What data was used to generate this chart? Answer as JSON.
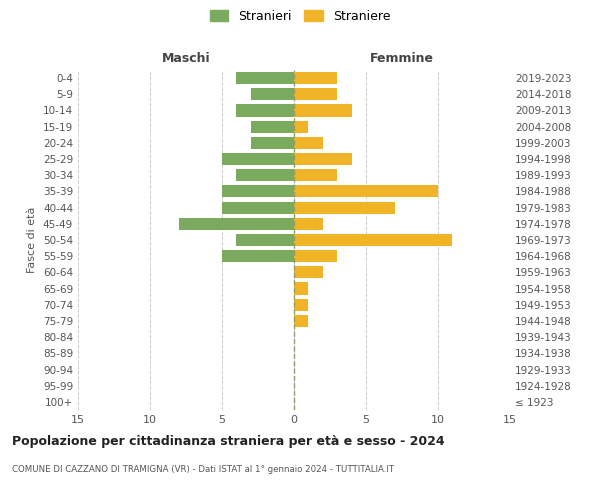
{
  "age_groups": [
    "100+",
    "95-99",
    "90-94",
    "85-89",
    "80-84",
    "75-79",
    "70-74",
    "65-69",
    "60-64",
    "55-59",
    "50-54",
    "45-49",
    "40-44",
    "35-39",
    "30-34",
    "25-29",
    "20-24",
    "15-19",
    "10-14",
    "5-9",
    "0-4"
  ],
  "birth_years": [
    "≤ 1923",
    "1924-1928",
    "1929-1933",
    "1934-1938",
    "1939-1943",
    "1944-1948",
    "1949-1953",
    "1954-1958",
    "1959-1963",
    "1964-1968",
    "1969-1973",
    "1974-1978",
    "1979-1983",
    "1984-1988",
    "1989-1993",
    "1994-1998",
    "1999-2003",
    "2004-2008",
    "2009-2013",
    "2014-2018",
    "2019-2023"
  ],
  "males": [
    0,
    0,
    0,
    0,
    0,
    0,
    0,
    0,
    0,
    5,
    4,
    8,
    5,
    5,
    4,
    5,
    3,
    3,
    4,
    3,
    4
  ],
  "females": [
    0,
    0,
    0,
    0,
    0,
    1,
    1,
    1,
    2,
    3,
    11,
    2,
    7,
    10,
    3,
    4,
    2,
    1,
    4,
    3,
    3
  ],
  "male_color": "#7aaa5d",
  "female_color": "#f0b429",
  "grid_color": "#cccccc",
  "center_line_color": "#999966",
  "title": "Popolazione per cittadinanza straniera per età e sesso - 2024",
  "subtitle": "COMUNE DI CAZZANO DI TRAMIGNA (VR) - Dati ISTAT al 1° gennaio 2024 - TUTTITALIA.IT",
  "xlabel_left": "Maschi",
  "xlabel_right": "Femmine",
  "ylabel_left": "Fasce di età",
  "legend_male": "Stranieri",
  "legend_female": "Straniere",
  "xlim": 15,
  "bg_color": "#ffffff"
}
